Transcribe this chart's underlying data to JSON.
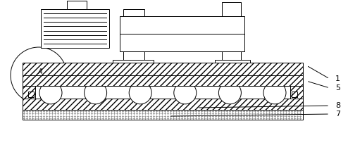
{
  "bg_color": "#ffffff",
  "line_color": "#000000",
  "figsize": [
    4.94,
    2.23
  ],
  "dpi": 100,
  "labels": [
    "1",
    "5",
    "8",
    "7"
  ],
  "label_A": "A"
}
